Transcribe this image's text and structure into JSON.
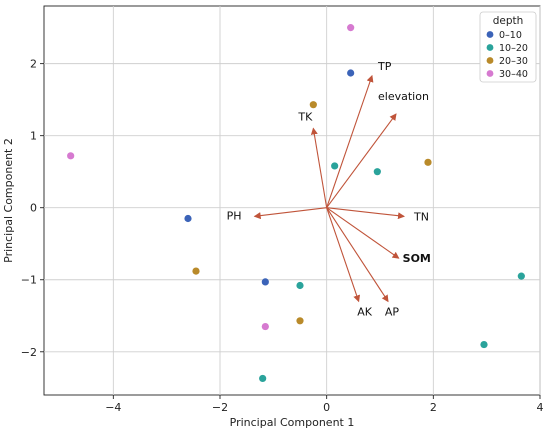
{
  "chart_data": {
    "type": "scatter",
    "title": "",
    "xlabel": "Principal Component 1",
    "ylabel": "Principal Component 2",
    "xlim": [
      -5.3,
      4.0
    ],
    "ylim": [
      -2.6,
      2.8
    ],
    "xticks": [
      -4,
      -2,
      0,
      2,
      4
    ],
    "yticks": [
      -2,
      -1,
      0,
      1,
      2
    ],
    "grid": true,
    "legend": {
      "title": "depth",
      "position": "top-right",
      "entries": [
        {
          "label": "0–10",
          "color": "#3b63b8"
        },
        {
          "label": "10–20",
          "color": "#2aa39b"
        },
        {
          "label": "20–30",
          "color": "#b98a2a"
        },
        {
          "label": "30–40",
          "color": "#d67ad0"
        }
      ]
    },
    "series": [
      {
        "name": "0–10",
        "color": "#3b63b8",
        "points": [
          [
            0.45,
            1.87
          ],
          [
            -2.6,
            -0.15
          ],
          [
            -1.15,
            -1.03
          ]
        ]
      },
      {
        "name": "10–20",
        "color": "#2aa39b",
        "points": [
          [
            0.15,
            0.58
          ],
          [
            0.95,
            0.5
          ],
          [
            -0.5,
            -1.08
          ],
          [
            3.65,
            -0.95
          ],
          [
            2.95,
            -1.9
          ],
          [
            -1.2,
            -2.37
          ]
        ]
      },
      {
        "name": "20–30",
        "color": "#b98a2a",
        "points": [
          [
            -0.25,
            1.43
          ],
          [
            1.9,
            0.63
          ],
          [
            -2.45,
            -0.88
          ],
          [
            -0.5,
            -1.57
          ]
        ]
      },
      {
        "name": "30–40",
        "color": "#d67ad0",
        "points": [
          [
            0.45,
            2.5
          ],
          [
            -4.8,
            0.72
          ],
          [
            -1.15,
            -1.65
          ]
        ]
      }
    ],
    "vectors": [
      {
        "label": "TP",
        "x": 0.85,
        "y": 1.83
      },
      {
        "label": "elevation",
        "x": 1.3,
        "y": 1.3
      },
      {
        "label": "TK",
        "x": -0.25,
        "y": 1.1
      },
      {
        "label": "PH",
        "x": -1.35,
        "y": -0.12
      },
      {
        "label": "TN",
        "x": 1.45,
        "y": -0.12
      },
      {
        "label": "SOM",
        "x": 1.35,
        "y": -0.7
      },
      {
        "label": "AK",
        "x": 0.6,
        "y": -1.3
      },
      {
        "label": "AP",
        "x": 1.15,
        "y": -1.3
      }
    ]
  }
}
